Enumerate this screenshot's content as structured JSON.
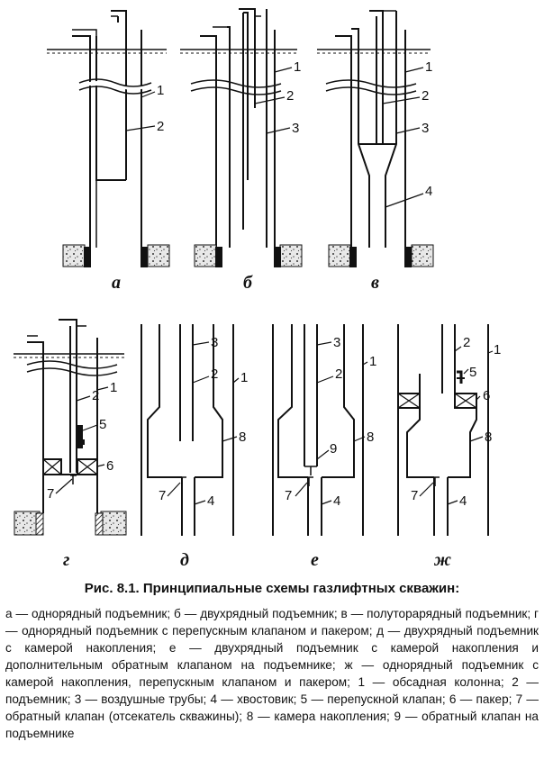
{
  "figure": {
    "title": "Рис. 8.1. Принципиальные схемы газлифтных скважин:",
    "caption": "а — однорядный подъемник; б — двухрядный подъемник; в — полуторарядный подъемник; г — однорядный подъемник с перепускным клапаном и пакером; д — двухрядный подъемник с камерой накопления; е — двухрядный подъемник с камерой накопления и дополнительным обратным клапаном на подъемнике; ж — однорядный подъемник с камерой накопления, перепускным клапаном и пакером; 1 — обсадная колонна; 2 — подъемник; 3 — воздушные трубы; 4 — хвостовик; 5 — перепускной клапан; 6 — пакер; 7 — обратный клапан (отсекатель скважины); 8 — камера накопления; 9 — обратный клапан на подъемнике"
  },
  "panels": [
    {
      "id": "a",
      "letter": "а",
      "labels": [
        "1",
        "2"
      ]
    },
    {
      "id": "b",
      "letter": "б",
      "labels": [
        "1",
        "2",
        "3"
      ]
    },
    {
      "id": "v",
      "letter": "в",
      "labels": [
        "1",
        "2",
        "3",
        "4"
      ]
    },
    {
      "id": "g",
      "letter": "г",
      "labels": [
        "1",
        "2",
        "5",
        "6",
        "7"
      ]
    },
    {
      "id": "d",
      "letter": "д",
      "labels": [
        "3",
        "2",
        "1",
        "8",
        "7",
        "4"
      ]
    },
    {
      "id": "e",
      "letter": "е",
      "labels": [
        "3",
        "2",
        "1",
        "9",
        "8",
        "7",
        "4"
      ]
    },
    {
      "id": "zh",
      "letter": "ж",
      "labels": [
        "2",
        "1",
        "5",
        "6",
        "8",
        "7",
        "4"
      ]
    }
  ]
}
